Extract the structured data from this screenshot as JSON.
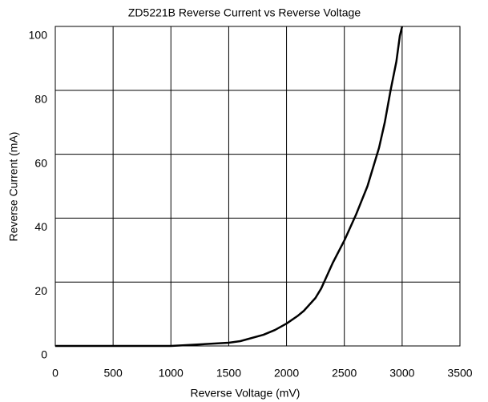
{
  "chart_data": {
    "type": "line",
    "title": "ZD5221B Reverse Current vs Reverse Voltage",
    "x_label": "Reverse Voltage (mV)",
    "y_label": "Reverse Current (mA)",
    "x": [
      0,
      1000,
      1100,
      1300,
      1500,
      1600,
      1800,
      1900,
      2000,
      2100,
      2150,
      2250,
      2300,
      2350,
      2400,
      2500,
      2600,
      2700,
      2800,
      2850,
      2900,
      2950,
      2980,
      3000
    ],
    "series": [
      {
        "name": "Reverse Current",
        "color": "#000000",
        "values": [
          0,
          0,
          0.2,
          0.6,
          1,
          1.5,
          3.5,
          5,
          7,
          9.5,
          11,
          15,
          18,
          22,
          26,
          33,
          41,
          50,
          62,
          70,
          80,
          89,
          97,
          100
        ]
      }
    ],
    "xlim": [
      0,
      3500
    ],
    "xticks": [
      0,
      500,
      1000,
      1500,
      2000,
      2500,
      3000,
      3500
    ],
    "ylim": [
      0,
      100
    ],
    "yticks": [
      0,
      20,
      40,
      60,
      80,
      100
    ],
    "grid": true
  }
}
